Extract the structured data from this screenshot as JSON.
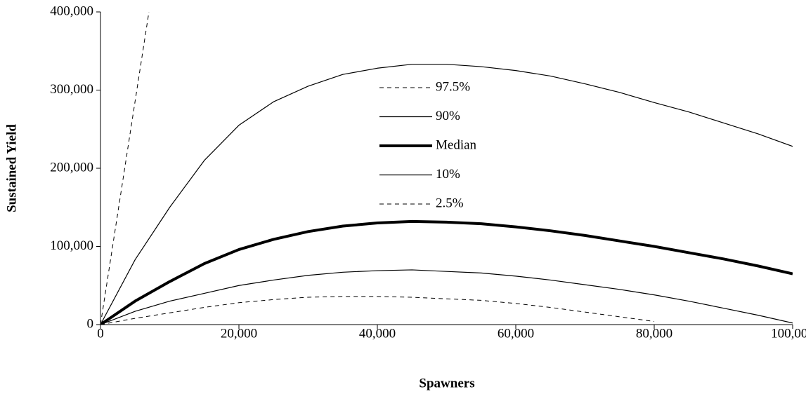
{
  "chart_data": {
    "type": "line",
    "x_label": "Spawners",
    "y_label": "Sustained Yield",
    "x": [
      0,
      5000,
      10000,
      15000,
      20000,
      25000,
      30000,
      35000,
      40000,
      45000,
      50000,
      55000,
      60000,
      65000,
      70000,
      75000,
      80000,
      85000,
      90000,
      95000,
      100000
    ],
    "series": [
      {
        "name": "97.5%",
        "color": "#000000",
        "dash": true,
        "width": 1,
        "x": [
          0,
          7000
        ],
        "values": [
          0,
          400000
        ]
      },
      {
        "name": "90%",
        "color": "#000000",
        "dash": false,
        "width": 1.2,
        "values": [
          0,
          83000,
          150000,
          210000,
          255000,
          285000,
          305000,
          320000,
          328000,
          333000,
          333000,
          330000,
          325000,
          318000,
          308000,
          297000,
          284000,
          272000,
          258000,
          244000,
          228000
        ]
      },
      {
        "name": "Median",
        "color": "#000000",
        "dash": false,
        "width": 4,
        "values": [
          0,
          30000,
          55000,
          78000,
          96000,
          109000,
          119000,
          126000,
          130000,
          132000,
          131000,
          129000,
          125000,
          120000,
          114000,
          107000,
          100000,
          92000,
          84000,
          75000,
          65000
        ]
      },
      {
        "name": "10%",
        "color": "#000000",
        "dash": false,
        "width": 1.2,
        "values": [
          0,
          17000,
          30000,
          40000,
          50000,
          57000,
          63000,
          67000,
          69000,
          70000,
          68000,
          66000,
          62000,
          57000,
          51000,
          45000,
          38000,
          30000,
          21000,
          12000,
          2000
        ]
      },
      {
        "name": "2.5%",
        "color": "#000000",
        "dash": true,
        "width": 1,
        "values": [
          0,
          8000,
          15000,
          22000,
          28000,
          32000,
          35000,
          36000,
          36000,
          35000,
          33000,
          31000,
          27000,
          22000,
          16000,
          10000,
          4000,
          null,
          null,
          null,
          null
        ]
      }
    ],
    "xlim": [
      0,
      100000
    ],
    "xticks": [
      {
        "value": 0,
        "label": "0"
      },
      {
        "value": 20000,
        "label": "20,000"
      },
      {
        "value": 40000,
        "label": "40,000"
      },
      {
        "value": 60000,
        "label": "60,000"
      },
      {
        "value": 80000,
        "label": "80,000"
      },
      {
        "value": 100000,
        "label": "100,000"
      }
    ],
    "ylim": [
      0,
      400000
    ],
    "yticks": [
      {
        "value": 0,
        "label": "0"
      },
      {
        "value": 100000,
        "label": "100,000"
      },
      {
        "value": 200000,
        "label": "200,000"
      },
      {
        "value": 300000,
        "label": "300,000"
      },
      {
        "value": 400000,
        "label": "400,000"
      }
    ],
    "grid": false,
    "legend": "center"
  }
}
